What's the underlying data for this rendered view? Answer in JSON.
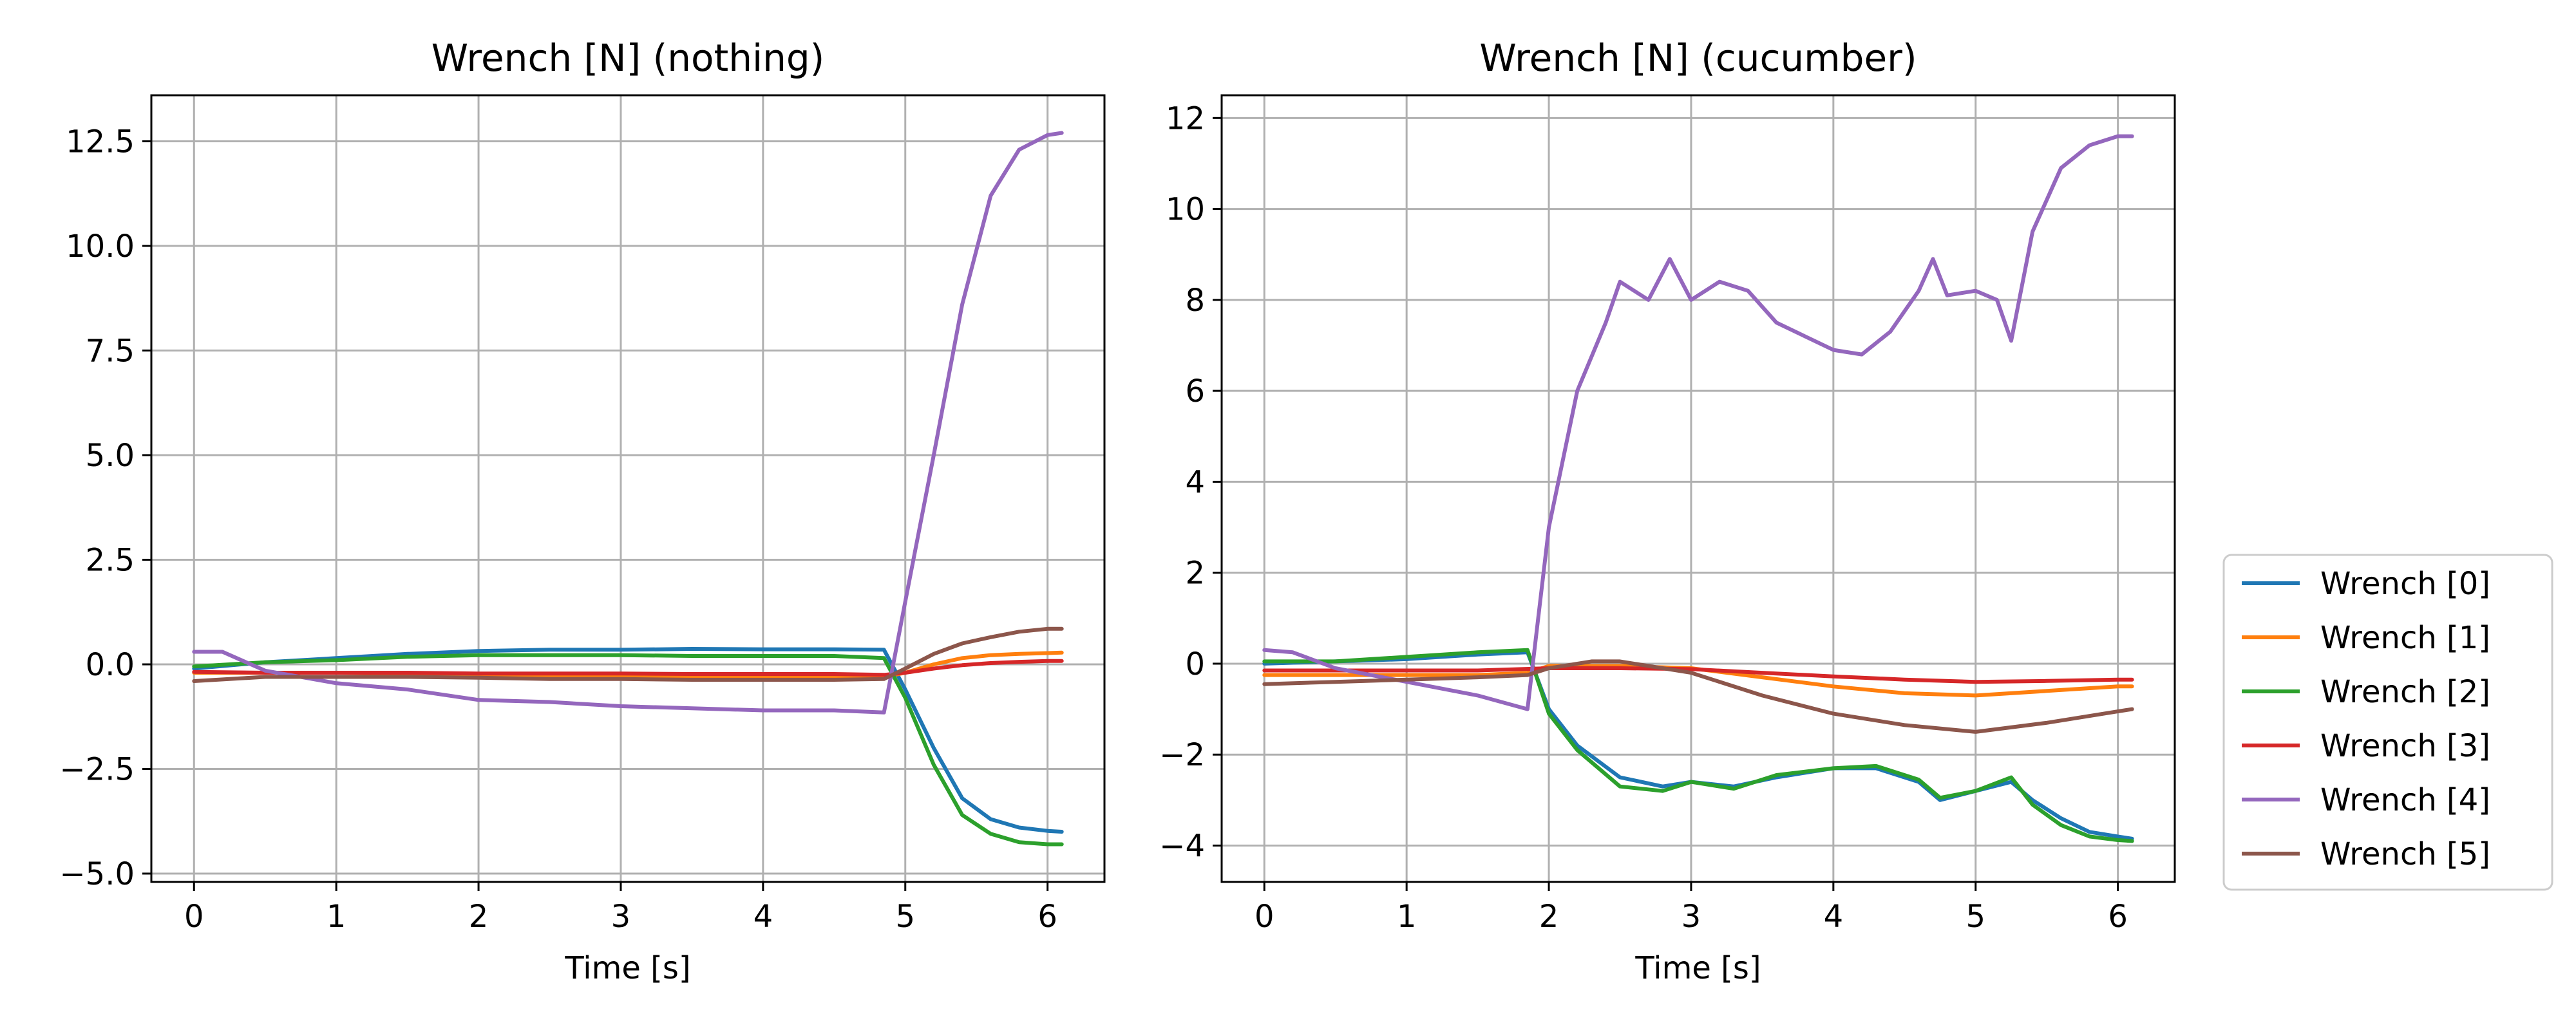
{
  "figure": {
    "legend": {
      "placement": "right, vertically centered",
      "entries": [
        "Wrench [0]",
        "Wrench [1]",
        "Wrench [2]",
        "Wrench [3]",
        "Wrench [4]",
        "Wrench [5]"
      ]
    }
  },
  "colors": [
    "#1f77b4",
    "#ff7f0e",
    "#2ca02c",
    "#d62728",
    "#9467bd",
    "#8c564b"
  ],
  "chart_data": [
    {
      "type": "line",
      "title": "Wrench [N] (nothing)",
      "xlabel": "Time [s]",
      "ylabel": "",
      "xlim": [
        -0.3,
        6.4
      ],
      "ylim": [
        -5.2,
        13.6
      ],
      "xticks": [
        0,
        1,
        2,
        3,
        4,
        5,
        6
      ],
      "yticks": [
        -5.0,
        -2.5,
        0.0,
        2.5,
        5.0,
        7.5,
        10.0,
        12.5
      ],
      "ytick_labels": [
        "−5.0",
        "−2.5",
        "0.0",
        "2.5",
        "5.0",
        "7.5",
        "10.0",
        "12.5"
      ],
      "grid": true,
      "series": [
        {
          "name": "Wrench [0]",
          "x": [
            0,
            0.5,
            1,
            1.5,
            2,
            2.5,
            3,
            3.5,
            4,
            4.5,
            4.85,
            5.0,
            5.2,
            5.4,
            5.6,
            5.8,
            6.0,
            6.1
          ],
          "values": [
            -0.1,
            0.05,
            0.15,
            0.25,
            0.32,
            0.35,
            0.35,
            0.37,
            0.36,
            0.36,
            0.35,
            -0.6,
            -2.0,
            -3.2,
            -3.7,
            -3.9,
            -3.98,
            -4.0
          ]
        },
        {
          "name": "Wrench [1]",
          "x": [
            0,
            0.5,
            1,
            1.5,
            2,
            2.5,
            3,
            3.5,
            4,
            4.5,
            4.85,
            5.0,
            5.2,
            5.4,
            5.6,
            5.8,
            6.0,
            6.1
          ],
          "values": [
            -0.2,
            -0.2,
            -0.2,
            -0.22,
            -0.25,
            -0.27,
            -0.28,
            -0.3,
            -0.3,
            -0.3,
            -0.3,
            -0.2,
            0.0,
            0.15,
            0.22,
            0.25,
            0.27,
            0.28
          ]
        },
        {
          "name": "Wrench [2]",
          "x": [
            0,
            0.5,
            1,
            1.5,
            2,
            2.5,
            3,
            3.5,
            4,
            4.5,
            4.85,
            5.0,
            5.2,
            5.4,
            5.6,
            5.8,
            6.0,
            6.1
          ],
          "values": [
            -0.05,
            0.05,
            0.1,
            0.18,
            0.22,
            0.22,
            0.22,
            0.2,
            0.2,
            0.2,
            0.15,
            -0.8,
            -2.4,
            -3.6,
            -4.05,
            -4.25,
            -4.3,
            -4.3
          ]
        },
        {
          "name": "Wrench [3]",
          "x": [
            0,
            0.5,
            1,
            1.5,
            2,
            2.5,
            3,
            3.5,
            4,
            4.5,
            4.85,
            5.0,
            5.2,
            5.4,
            5.6,
            5.8,
            6.0,
            6.1
          ],
          "values": [
            -0.18,
            -0.2,
            -0.2,
            -0.2,
            -0.22,
            -0.22,
            -0.22,
            -0.23,
            -0.23,
            -0.23,
            -0.25,
            -0.2,
            -0.1,
            -0.02,
            0.03,
            0.06,
            0.08,
            0.08
          ]
        },
        {
          "name": "Wrench [4]",
          "x": [
            0,
            0.2,
            0.5,
            1,
            1.5,
            2,
            2.5,
            3,
            3.5,
            4,
            4.5,
            4.85,
            5.0,
            5.2,
            5.4,
            5.6,
            5.8,
            6.0,
            6.1
          ],
          "values": [
            0.3,
            0.3,
            -0.15,
            -0.45,
            -0.6,
            -0.85,
            -0.9,
            -1.0,
            -1.05,
            -1.1,
            -1.1,
            -1.15,
            1.5,
            5.0,
            8.6,
            11.2,
            12.3,
            12.65,
            12.7
          ]
        },
        {
          "name": "Wrench [5]",
          "x": [
            0,
            0.5,
            1,
            1.5,
            2,
            2.5,
            3,
            3.5,
            4,
            4.5,
            4.85,
            5.0,
            5.2,
            5.4,
            5.6,
            5.8,
            6.0,
            6.1
          ],
          "values": [
            -0.4,
            -0.3,
            -0.3,
            -0.3,
            -0.32,
            -0.35,
            -0.35,
            -0.37,
            -0.37,
            -0.37,
            -0.35,
            -0.1,
            0.25,
            0.5,
            0.65,
            0.78,
            0.85,
            0.85
          ]
        }
      ]
    },
    {
      "type": "line",
      "title": "Wrench [N] (cucumber)",
      "xlabel": "Time [s]",
      "ylabel": "",
      "xlim": [
        -0.3,
        6.4
      ],
      "ylim": [
        -4.8,
        12.5
      ],
      "xticks": [
        0,
        1,
        2,
        3,
        4,
        5,
        6
      ],
      "yticks": [
        -4,
        -2,
        0,
        2,
        4,
        6,
        8,
        10,
        12
      ],
      "ytick_labels": [
        "−4",
        "−2",
        "0",
        "2",
        "4",
        "6",
        "8",
        "10",
        "12"
      ],
      "grid": true,
      "series": [
        {
          "name": "Wrench [0]",
          "x": [
            0,
            0.5,
            1,
            1.5,
            1.85,
            2.0,
            2.2,
            2.5,
            2.8,
            3.0,
            3.3,
            3.6,
            4.0,
            4.3,
            4.6,
            4.75,
            5.0,
            5.25,
            5.4,
            5.6,
            5.8,
            6.0,
            6.1
          ],
          "values": [
            0.0,
            0.05,
            0.1,
            0.2,
            0.25,
            -1.0,
            -1.8,
            -2.5,
            -2.7,
            -2.6,
            -2.7,
            -2.5,
            -2.3,
            -2.3,
            -2.6,
            -3.0,
            -2.8,
            -2.6,
            -3.0,
            -3.4,
            -3.7,
            -3.8,
            -3.85
          ]
        },
        {
          "name": "Wrench [1]",
          "x": [
            0,
            0.5,
            1,
            1.5,
            1.85,
            2.0,
            2.5,
            3.0,
            3.5,
            4.0,
            4.5,
            5.0,
            5.5,
            6.0,
            6.1
          ],
          "values": [
            -0.25,
            -0.25,
            -0.25,
            -0.25,
            -0.2,
            -0.05,
            -0.05,
            -0.1,
            -0.3,
            -0.5,
            -0.65,
            -0.7,
            -0.6,
            -0.5,
            -0.5
          ]
        },
        {
          "name": "Wrench [2]",
          "x": [
            0,
            0.5,
            1,
            1.5,
            1.85,
            2.0,
            2.2,
            2.5,
            2.8,
            3.0,
            3.3,
            3.6,
            4.0,
            4.3,
            4.6,
            4.75,
            5.0,
            5.25,
            5.4,
            5.6,
            5.8,
            6.0,
            6.1
          ],
          "values": [
            0.05,
            0.05,
            0.15,
            0.25,
            0.3,
            -1.1,
            -1.9,
            -2.7,
            -2.8,
            -2.6,
            -2.75,
            -2.45,
            -2.3,
            -2.25,
            -2.55,
            -2.95,
            -2.8,
            -2.5,
            -3.1,
            -3.55,
            -3.8,
            -3.88,
            -3.9
          ]
        },
        {
          "name": "Wrench [3]",
          "x": [
            0,
            0.5,
            1,
            1.5,
            2.0,
            2.5,
            3.0,
            3.5,
            4.0,
            4.5,
            5.0,
            5.5,
            6.0,
            6.1
          ],
          "values": [
            -0.15,
            -0.15,
            -0.15,
            -0.15,
            -0.1,
            -0.1,
            -0.12,
            -0.2,
            -0.28,
            -0.35,
            -0.4,
            -0.38,
            -0.35,
            -0.35
          ]
        },
        {
          "name": "Wrench [4]",
          "x": [
            0,
            0.2,
            0.5,
            1.0,
            1.5,
            1.85,
            2.0,
            2.2,
            2.4,
            2.5,
            2.7,
            2.85,
            3.0,
            3.2,
            3.4,
            3.6,
            3.8,
            4.0,
            4.2,
            4.4,
            4.6,
            4.7,
            4.8,
            5.0,
            5.15,
            5.25,
            5.4,
            5.6,
            5.8,
            6.0,
            6.1
          ],
          "values": [
            0.3,
            0.25,
            -0.1,
            -0.4,
            -0.7,
            -1.0,
            3.0,
            6.0,
            7.5,
            8.4,
            8.0,
            8.9,
            8.0,
            8.4,
            8.2,
            7.5,
            7.2,
            6.9,
            6.8,
            7.3,
            8.2,
            8.9,
            8.1,
            8.2,
            8.0,
            7.1,
            9.5,
            10.9,
            11.4,
            11.6,
            11.6
          ]
        },
        {
          "name": "Wrench [5]",
          "x": [
            0,
            0.5,
            1,
            1.5,
            1.85,
            2.0,
            2.3,
            2.5,
            3.0,
            3.5,
            4.0,
            4.5,
            5.0,
            5.5,
            6.0,
            6.1
          ],
          "values": [
            -0.45,
            -0.4,
            -0.35,
            -0.3,
            -0.25,
            -0.1,
            0.05,
            0.05,
            -0.2,
            -0.7,
            -1.1,
            -1.35,
            -1.5,
            -1.3,
            -1.05,
            -1.0
          ]
        }
      ]
    }
  ]
}
